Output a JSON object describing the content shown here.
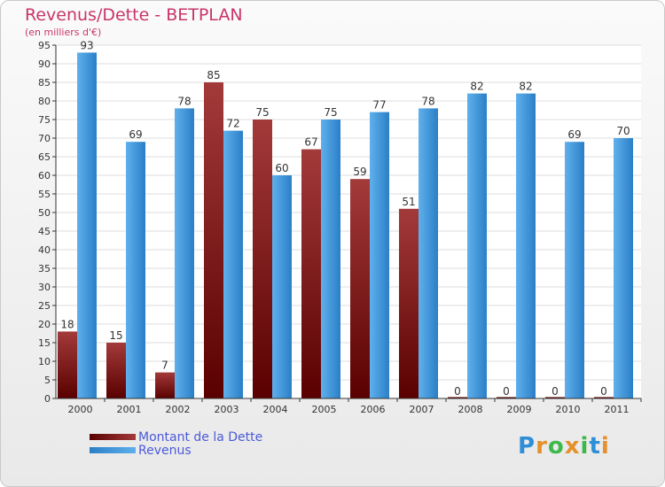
{
  "title": "Revenus/Dette - BETPLAN",
  "subtitle": "(en milliers d'€)",
  "colors": {
    "title": "#c8356a",
    "dette_dark": "#5a0000",
    "dette_light": "#a33a3a",
    "revenus_dark": "#2a7fc6",
    "revenus_light": "#5fb0ec",
    "legend_text": "#4a59d9"
  },
  "legend": [
    {
      "label": "Montant de la Dette"
    },
    {
      "label": "Revenus"
    }
  ],
  "logo": {
    "letters": [
      "P",
      "r",
      "o",
      "x",
      "i",
      "t",
      "i"
    ],
    "colors": [
      "#2f8fd6",
      "#e5902a",
      "#3db94a",
      "#e5902a",
      "#3db94a",
      "#2f8fd6",
      "#e5902a"
    ]
  },
  "chart_data": {
    "type": "bar",
    "categories": [
      "2000",
      "2001",
      "2002",
      "2003",
      "2004",
      "2005",
      "2006",
      "2007",
      "2008",
      "2009",
      "2010",
      "2011"
    ],
    "series": [
      {
        "name": "Montant de la Dette",
        "values": [
          18,
          15,
          7,
          85,
          75,
          67,
          59,
          51,
          0,
          0,
          0,
          0
        ]
      },
      {
        "name": "Revenus",
        "values": [
          93,
          69,
          78,
          72,
          60,
          75,
          77,
          78,
          82,
          82,
          69,
          70
        ]
      }
    ],
    "ylim": [
      0,
      95
    ],
    "yticks": [
      0,
      5,
      10,
      15,
      20,
      25,
      30,
      35,
      40,
      45,
      50,
      55,
      60,
      65,
      70,
      75,
      80,
      85,
      90,
      95
    ],
    "grid": true
  }
}
